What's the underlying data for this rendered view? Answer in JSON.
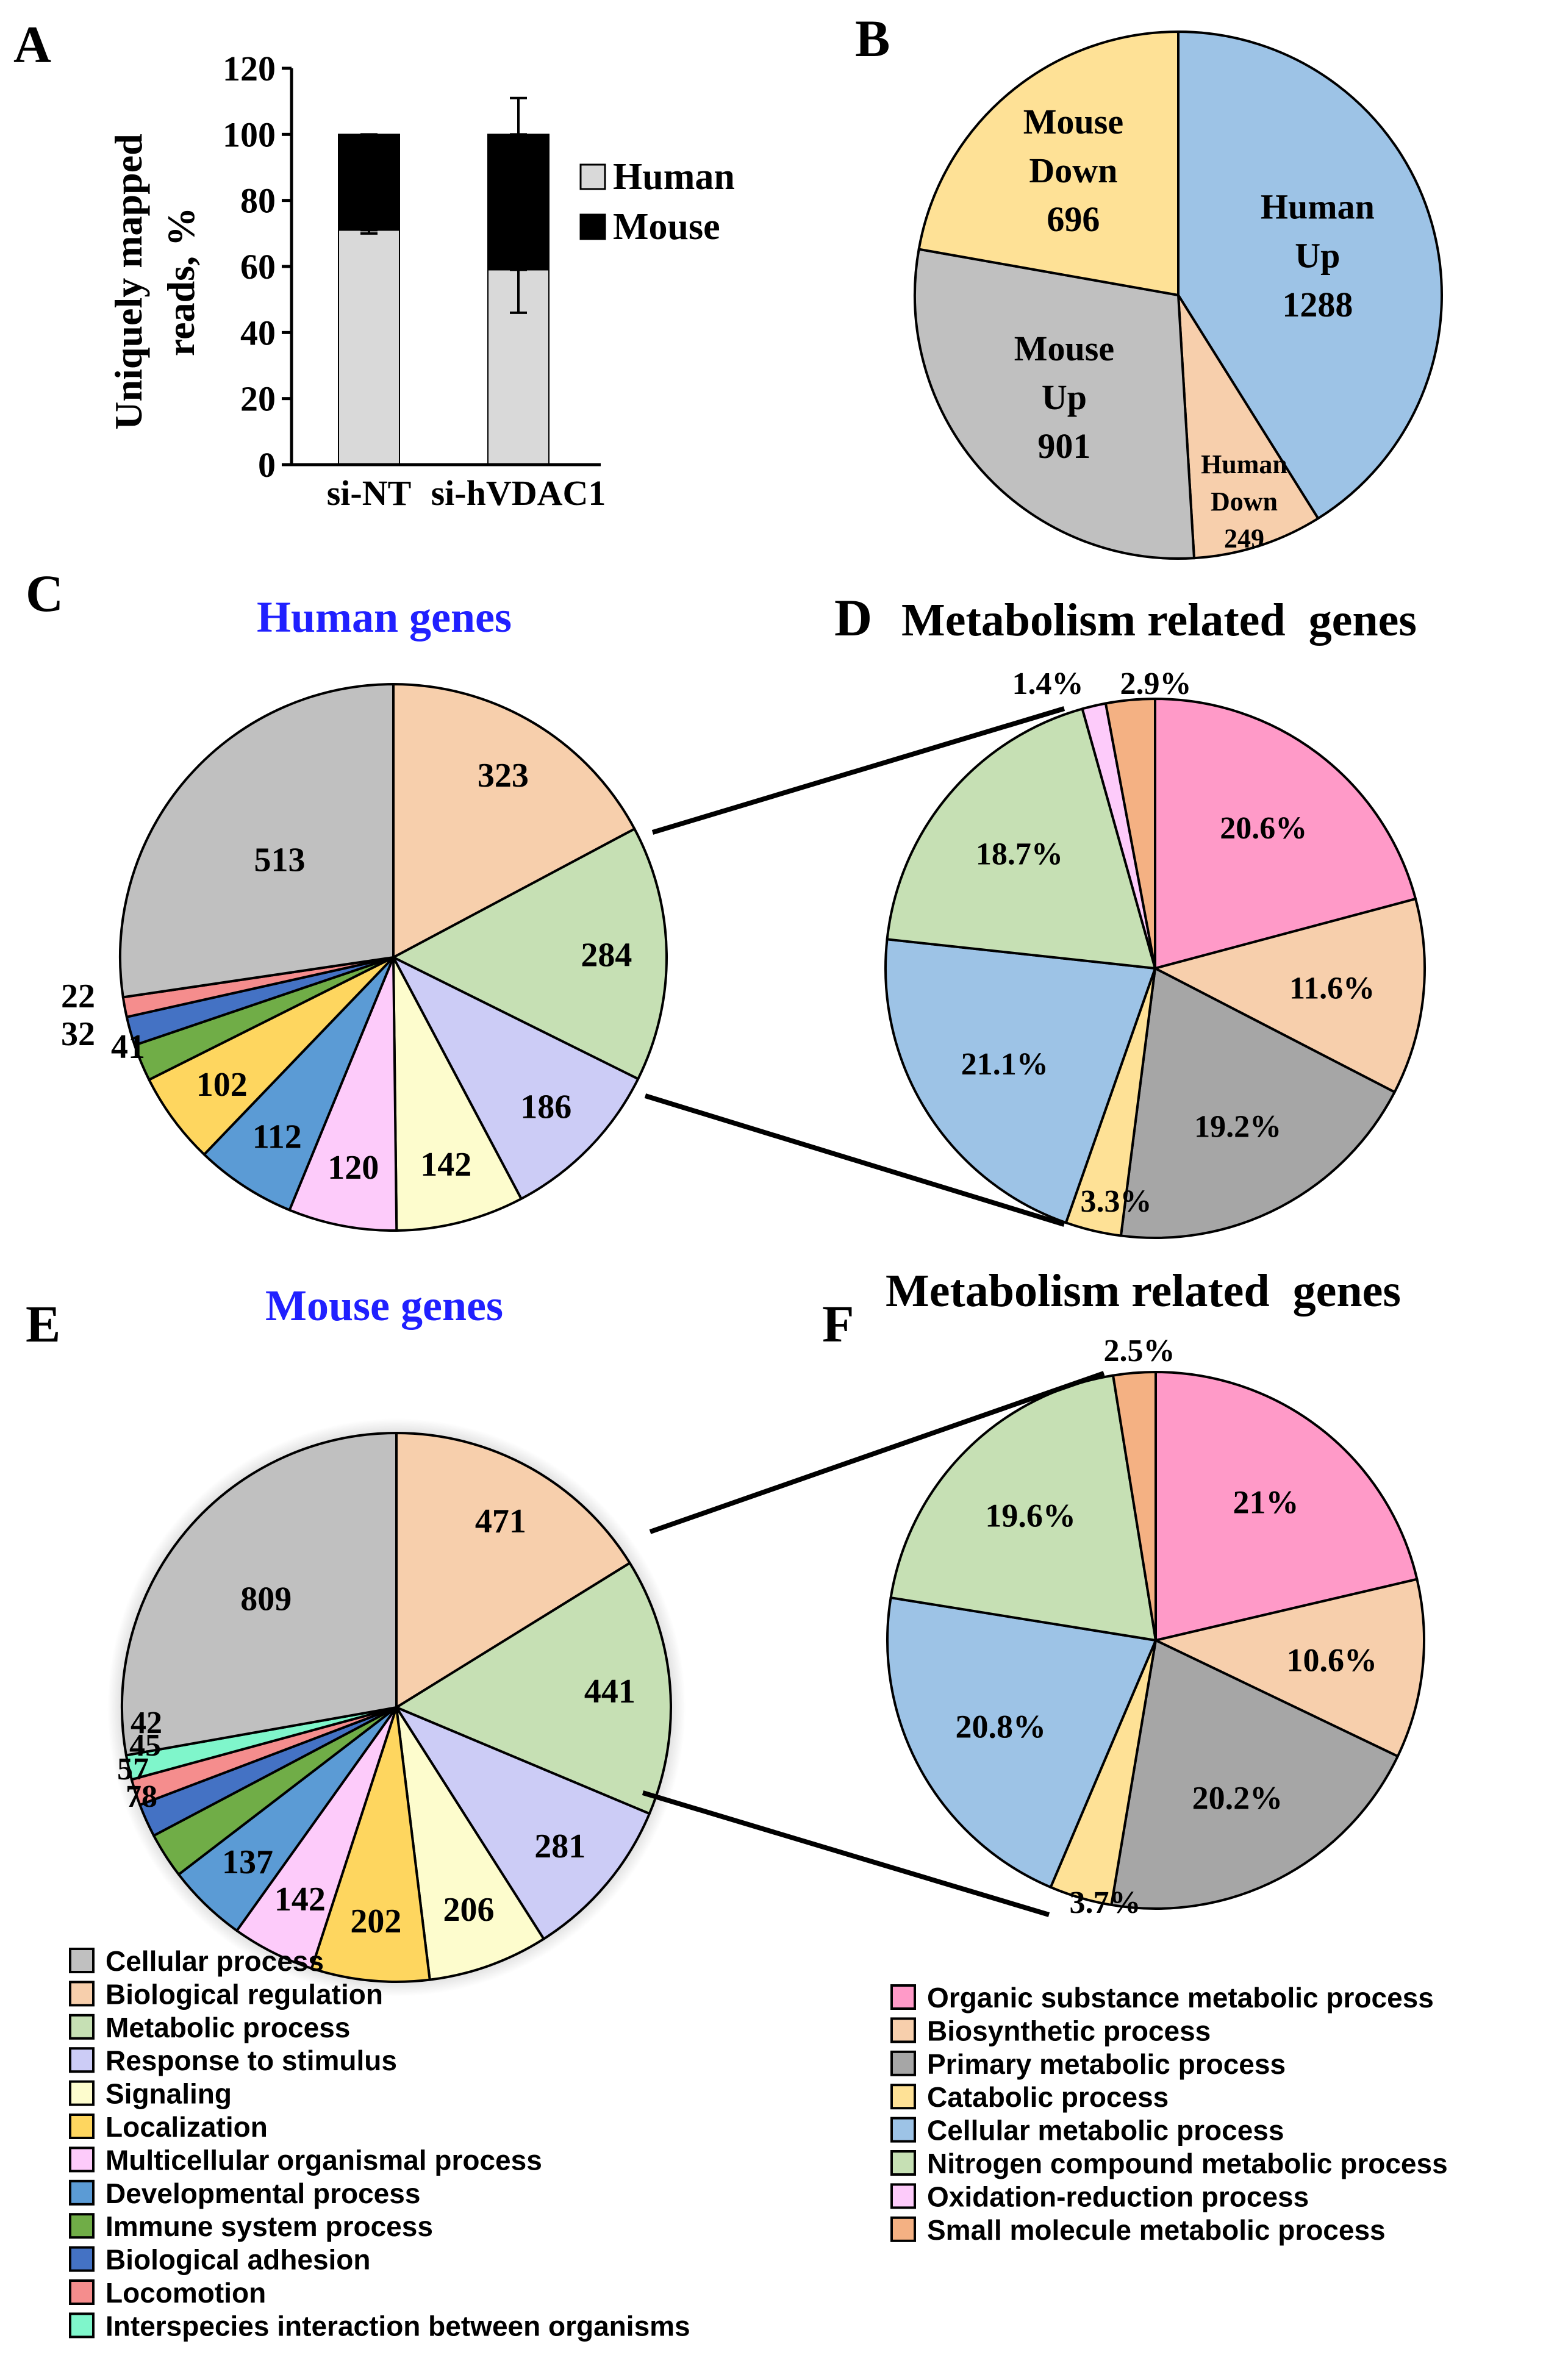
{
  "colors": {
    "cellular": "#c0c0c0",
    "bioreg": "#f7cfac",
    "metabolic": "#c6e0b4",
    "response": "#ccccf6",
    "signaling": "#fdfccd",
    "localization": "#fed65f",
    "multicell": "#fdcbfa",
    "developmental": "#5b9bd5",
    "immune": "#70ad47",
    "adhesion": "#4472c4",
    "locomotion": "#f58d8d",
    "interspecies": "#7ff6cb",
    "organic": "#ff9ac8",
    "biosynthetic": "#f7cfac",
    "primary": "#a6a6a6",
    "catabolic": "#fee196",
    "cellmeta": "#9dc3e6",
    "nitrogen": "#c6e0b4",
    "oxidation": "#fdcbfa",
    "smallmol": "#f4b183",
    "human_bar": "#d9d9d9",
    "mouse_bar": "#000000",
    "title_blue": "#2020ff"
  },
  "panels": {
    "A": "A",
    "B": "B",
    "C": "C",
    "D": "D",
    "E": "E",
    "F": "F"
  },
  "chart_data": [
    {
      "id": "A",
      "type": "bar",
      "stacked": true,
      "categories": [
        "si-NT",
        "si-hVDAC1"
      ],
      "series": [
        {
          "name": "Human",
          "values": [
            71,
            59
          ],
          "color_key": "human_bar"
        },
        {
          "name": "Mouse",
          "values": [
            29,
            41
          ],
          "color_key": "mouse_bar"
        }
      ],
      "error_bars": [
        {
          "category": "si-NT",
          "at": 71,
          "minus": 1,
          "plus": 0
        },
        {
          "category": "si-NT",
          "at": 100,
          "minus": 1,
          "plus": 0
        },
        {
          "category": "si-hVDAC1",
          "at": 59,
          "minus": 13,
          "plus": 0
        },
        {
          "category": "si-hVDAC1",
          "at": 100,
          "minus": 0,
          "plus": 11
        }
      ],
      "ylabel_line1": "Uniquely  mapped",
      "ylabel_line2": "reads, %",
      "ylim": [
        0,
        120
      ],
      "yticks": [
        "0",
        "20",
        "40",
        "60",
        "80",
        "100",
        "120"
      ],
      "legend": [
        "Human",
        "Mouse"
      ]
    },
    {
      "id": "B",
      "type": "pie",
      "slices": [
        {
          "lines": [
            "Human",
            "Up",
            "1288"
          ],
          "value": 1288,
          "color_key": "cellmeta"
        },
        {
          "lines": [
            "Human",
            "Down",
            "249"
          ],
          "value": 249,
          "color_key": "bioreg"
        },
        {
          "lines": [
            "Mouse",
            "Up",
            "901"
          ],
          "value": 901,
          "color_key": "cellular"
        },
        {
          "lines": [
            "Mouse",
            "Down",
            "696"
          ],
          "value": 696,
          "color_key": "catabolic"
        }
      ]
    },
    {
      "id": "C",
      "type": "pie",
      "title": "Human genes",
      "slices": [
        {
          "label": "323",
          "value": 323,
          "color_key": "bioreg"
        },
        {
          "label": "284",
          "value": 284,
          "color_key": "metabolic"
        },
        {
          "label": "186",
          "value": 186,
          "color_key": "response"
        },
        {
          "label": "142",
          "value": 142,
          "color_key": "signaling"
        },
        {
          "label": "120",
          "value": 120,
          "color_key": "multicell"
        },
        {
          "label": "112",
          "value": 112,
          "color_key": "developmental"
        },
        {
          "label": "102",
          "value": 102,
          "color_key": "localization"
        },
        {
          "label": "41",
          "value": 41,
          "color_key": "immune"
        },
        {
          "label": "32",
          "value": 32,
          "color_key": "adhesion"
        },
        {
          "label": "22",
          "value": 22,
          "color_key": "locomotion"
        },
        {
          "label": "513",
          "value": 513,
          "color_key": "cellular"
        }
      ]
    },
    {
      "id": "D",
      "type": "pie",
      "title": "Metabolism related  genes",
      "slices": [
        {
          "label": "20.6%",
          "value": 20.6,
          "color_key": "organic"
        },
        {
          "label": "11.6%",
          "value": 11.6,
          "color_key": "biosynthetic"
        },
        {
          "label": "19.2%",
          "value": 19.2,
          "color_key": "primary"
        },
        {
          "label": "3.3%",
          "value": 3.3,
          "color_key": "catabolic"
        },
        {
          "label": "21.1%",
          "value": 21.1,
          "color_key": "cellmeta"
        },
        {
          "label": "18.7%",
          "value": 18.7,
          "color_key": "nitrogen"
        },
        {
          "label": "1.4%",
          "value": 1.4,
          "color_key": "oxidation"
        },
        {
          "label": "2.9%",
          "value": 2.9,
          "color_key": "smallmol"
        }
      ]
    },
    {
      "id": "E",
      "type": "pie",
      "title": "Mouse genes",
      "slices": [
        {
          "label": "471",
          "value": 471,
          "color_key": "bioreg"
        },
        {
          "label": "441",
          "value": 441,
          "color_key": "metabolic"
        },
        {
          "label": "281",
          "value": 281,
          "color_key": "response"
        },
        {
          "label": "206",
          "value": 206,
          "color_key": "signaling"
        },
        {
          "label": "202",
          "value": 202,
          "color_key": "localization"
        },
        {
          "label": "142",
          "value": 142,
          "color_key": "multicell"
        },
        {
          "label": "137",
          "value": 137,
          "color_key": "developmental"
        },
        {
          "label": "78",
          "value": 78,
          "color_key": "immune"
        },
        {
          "label": "57",
          "value": 57,
          "color_key": "adhesion"
        },
        {
          "label": "45",
          "value": 45,
          "color_key": "locomotion"
        },
        {
          "label": "42",
          "value": 42,
          "color_key": "interspecies"
        },
        {
          "label": "809",
          "value": 809,
          "color_key": "cellular"
        }
      ]
    },
    {
      "id": "F",
      "type": "pie",
      "title": "Metabolism related  genes",
      "slices": [
        {
          "label": "21%",
          "value": 21,
          "color_key": "organic"
        },
        {
          "label": "10.6%",
          "value": 10.6,
          "color_key": "biosynthetic"
        },
        {
          "label": "20.2%",
          "value": 20.2,
          "color_key": "primary"
        },
        {
          "label": "3.7%",
          "value": 3.7,
          "color_key": "catabolic"
        },
        {
          "label": "20.8%",
          "value": 20.8,
          "color_key": "cellmeta"
        },
        {
          "label": "19.6%",
          "value": 19.6,
          "color_key": "nitrogen"
        },
        {
          "label": "2.5%",
          "value": 2.5,
          "color_key": "smallmol"
        }
      ]
    }
  ],
  "legend_left": [
    {
      "label": "Cellular process",
      "color_key": "cellular"
    },
    {
      "label": "Biological regulation",
      "color_key": "bioreg"
    },
    {
      "label": "Metabolic process",
      "color_key": "metabolic"
    },
    {
      "label": "Response to stimulus",
      "color_key": "response"
    },
    {
      "label": "Signaling",
      "color_key": "signaling"
    },
    {
      "label": "Localization",
      "color_key": "localization"
    },
    {
      "label": "Multicellular organismal process",
      "color_key": "multicell"
    },
    {
      "label": "Developmental process",
      "color_key": "developmental"
    },
    {
      "label": "Immune system process",
      "color_key": "immune"
    },
    {
      "label": "Biological adhesion",
      "color_key": "adhesion"
    },
    {
      "label": "Locomotion",
      "color_key": "locomotion"
    },
    {
      "label": "Interspecies interaction between organisms",
      "color_key": "interspecies"
    }
  ],
  "legend_right": [
    {
      "label": "Organic substance metabolic process",
      "color_key": "organic"
    },
    {
      "label": "Biosynthetic process",
      "color_key": "biosynthetic"
    },
    {
      "label": "Primary metabolic process",
      "color_key": "primary"
    },
    {
      "label": "Catabolic process",
      "color_key": "catabolic"
    },
    {
      "label": "Cellular metabolic process",
      "color_key": "cellmeta"
    },
    {
      "label": "Nitrogen compound metabolic process",
      "color_key": "nitrogen"
    },
    {
      "label": "Oxidation-reduction process",
      "color_key": "oxidation"
    },
    {
      "label": "Small molecule metabolic process",
      "color_key": "smallmol"
    }
  ]
}
